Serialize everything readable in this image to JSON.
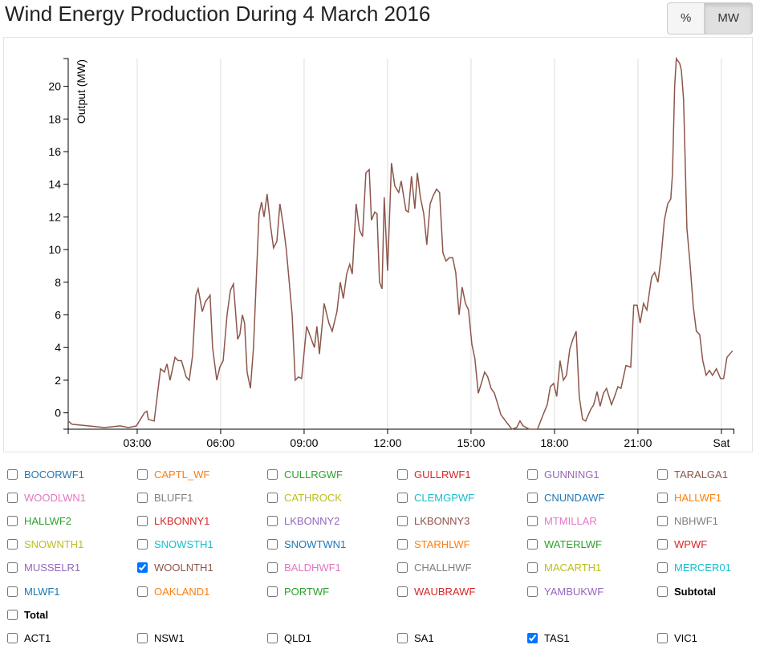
{
  "header": {
    "title": "Wind Energy Production During 4 March 2016",
    "buttons": [
      {
        "label": "%",
        "active": false
      },
      {
        "label": "MW",
        "active": true
      }
    ]
  },
  "chart_data": {
    "type": "line",
    "y_label": "Output (MW)",
    "color": "#8c564b",
    "grid": "x",
    "xlim": [
      0.52,
      24.45
    ],
    "ylim": [
      -1,
      21.7
    ],
    "xticks": [
      {
        "value": 3,
        "label": "03:00"
      },
      {
        "value": 6,
        "label": "06:00"
      },
      {
        "value": 9,
        "label": "09:00"
      },
      {
        "value": 12,
        "label": "12:00"
      },
      {
        "value": 15,
        "label": "15:00"
      },
      {
        "value": 18,
        "label": "18:00"
      },
      {
        "value": 21,
        "label": "21:00"
      },
      {
        "value": 24,
        "label": "Sat"
      }
    ],
    "yticks": [
      0,
      2,
      4,
      6,
      8,
      10,
      12,
      14,
      16,
      18,
      20
    ],
    "x": [
      0.52,
      0.66,
      1.24,
      1.82,
      2.39,
      2.68,
      2.97,
      3.26,
      3.35,
      3.4,
      3.61,
      3.84,
      3.98,
      4.07,
      4.18,
      4.36,
      4.47,
      4.59,
      4.76,
      4.87,
      4.99,
      5.11,
      5.19,
      5.34,
      5.45,
      5.62,
      5.71,
      5.86,
      5.97,
      6.09,
      6.23,
      6.35,
      6.46,
      6.61,
      6.69,
      6.78,
      6.86,
      6.95,
      7.07,
      7.18,
      7.3,
      7.38,
      7.47,
      7.56,
      7.67,
      7.79,
      7.9,
      8.02,
      8.13,
      8.25,
      8.36,
      8.57,
      8.68,
      8.8,
      8.91,
      9.09,
      9.2,
      9.37,
      9.46,
      9.55,
      9.72,
      9.89,
      10.01,
      10.18,
      10.3,
      10.41,
      10.53,
      10.64,
      10.73,
      10.87,
      10.99,
      11.1,
      11.22,
      11.34,
      11.42,
      11.54,
      11.62,
      11.71,
      11.8,
      11.88,
      12.0,
      12.14,
      12.26,
      12.4,
      12.49,
      12.66,
      12.75,
      12.86,
      12.98,
      13.07,
      13.18,
      13.3,
      13.41,
      13.53,
      13.64,
      13.76,
      13.87,
      13.99,
      14.1,
      14.22,
      14.34,
      14.45,
      14.57,
      14.68,
      14.8,
      14.91,
      15.03,
      15.14,
      15.26,
      15.37,
      15.49,
      15.6,
      15.72,
      15.84,
      15.95,
      16.07,
      16.24,
      16.47,
      16.64,
      16.76,
      16.87,
      17.1,
      17.39,
      17.57,
      17.74,
      17.85,
      17.97,
      18.08,
      18.2,
      18.32,
      18.43,
      18.55,
      18.66,
      18.78,
      18.89,
      19.01,
      19.12,
      19.3,
      19.41,
      19.53,
      19.64,
      19.76,
      19.87,
      20.05,
      20.16,
      20.28,
      20.39,
      20.57,
      20.74,
      20.85,
      20.97,
      21.08,
      21.2,
      21.32,
      21.49,
      21.6,
      21.72,
      21.83,
      21.95,
      22.07,
      22.18,
      22.24,
      22.32,
      22.38,
      22.5,
      22.56,
      22.64,
      22.76,
      22.87,
      22.99,
      23.1,
      23.22,
      23.33,
      23.45,
      23.57,
      23.68,
      23.82,
      23.97,
      24.08,
      24.2,
      24.4
    ],
    "values": [
      -0.5,
      -0.7,
      -0.8,
      -0.9,
      -0.8,
      -0.9,
      -0.8,
      0,
      0.1,
      -0.4,
      -0.5,
      2.7,
      2.5,
      3.0,
      2.0,
      3.4,
      3.2,
      3.2,
      2.2,
      2.0,
      3.5,
      7.2,
      7.6,
      6.2,
      6.8,
      7.2,
      4.0,
      2.0,
      2.8,
      3.2,
      6.0,
      7.5,
      7.9,
      4.5,
      4.8,
      6.0,
      5.5,
      2.5,
      1.5,
      4.0,
      9.0,
      12.2,
      12.9,
      12.0,
      13.4,
      11.5,
      10.1,
      10.5,
      12.8,
      11.5,
      10.0,
      6.0,
      2.0,
      2.2,
      2.1,
      5.3,
      4.8,
      4.0,
      5.3,
      3.6,
      6.7,
      5.5,
      5.0,
      6.2,
      8.0,
      7.0,
      8.5,
      9.1,
      8.5,
      12.8,
      11.2,
      10.8,
      14.7,
      14.9,
      11.8,
      12.3,
      12.2,
      8.0,
      7.6,
      13.2,
      8.7,
      15.3,
      13.9,
      13.5,
      14.2,
      12.4,
      12.3,
      14.5,
      12.5,
      14.7,
      13.2,
      12.2,
      10.3,
      12.8,
      13.3,
      13.7,
      13.5,
      9.8,
      9.3,
      9.5,
      9.5,
      8.6,
      6.0,
      7.7,
      6.7,
      6.3,
      4.2,
      3.3,
      1.2,
      1.8,
      2.5,
      2.2,
      1.5,
      1.2,
      0.6,
      -0.1,
      -0.5,
      -1.0,
      -0.9,
      -0.5,
      -0.8,
      -1.0,
      -1.0,
      -0.2,
      0.5,
      1.6,
      1.8,
      1.0,
      3.2,
      2.0,
      2.3,
      3.9,
      4.5,
      5.0,
      1.0,
      -0.4,
      -0.5,
      0.2,
      0.5,
      1.3,
      0.4,
      1.2,
      1.5,
      0.5,
      1.0,
      1.6,
      1.5,
      2.9,
      2.8,
      6.6,
      6.6,
      5.5,
      6.7,
      6.3,
      8.3,
      8.6,
      8.0,
      9.5,
      11.8,
      12.8,
      13.1,
      14.6,
      20.0,
      21.7,
      21.4,
      21.0,
      19.2,
      11.3,
      9.2,
      6.5,
      5.0,
      4.8,
      3.2,
      2.3,
      2.6,
      2.3,
      2.7,
      2.1,
      2.1,
      3.4,
      3.8
    ]
  },
  "legend": {
    "stations": [
      {
        "label": "BOCORWF1",
        "color": "#1f77b4",
        "checked": false
      },
      {
        "label": "CAPTL_WF",
        "color": "#ff7f0e",
        "checked": false
      },
      {
        "label": "CULLRGWF",
        "color": "#2ca02c",
        "checked": false
      },
      {
        "label": "GULLRWF1",
        "color": "#d62728",
        "checked": false
      },
      {
        "label": "GUNNING1",
        "color": "#9467bd",
        "checked": false
      },
      {
        "label": "TARALGA1",
        "color": "#8c564b",
        "checked": false
      },
      {
        "label": "WOODLWN1",
        "color": "#e377c2",
        "checked": false
      },
      {
        "label": "BLUFF1",
        "color": "#7f7f7f",
        "checked": false
      },
      {
        "label": "CATHROCK",
        "color": "#bcbd22",
        "checked": false
      },
      {
        "label": "CLEMGPWF",
        "color": "#17becf",
        "checked": false
      },
      {
        "label": "CNUNDAWF",
        "color": "#1f77b4",
        "checked": false
      },
      {
        "label": "HALLWF1",
        "color": "#ff7f0e",
        "checked": false
      },
      {
        "label": "HALLWF2",
        "color": "#2ca02c",
        "checked": false
      },
      {
        "label": "LKBONNY1",
        "color": "#d62728",
        "checked": false
      },
      {
        "label": "LKBONNY2",
        "color": "#9467bd",
        "checked": false
      },
      {
        "label": "LKBONNY3",
        "color": "#8c564b",
        "checked": false
      },
      {
        "label": "MTMILLAR",
        "color": "#e377c2",
        "checked": false
      },
      {
        "label": "NBHWF1",
        "color": "#7f7f7f",
        "checked": false
      },
      {
        "label": "SNOWNTH1",
        "color": "#bcbd22",
        "checked": false
      },
      {
        "label": "SNOWSTH1",
        "color": "#17becf",
        "checked": false
      },
      {
        "label": "SNOWTWN1",
        "color": "#1f77b4",
        "checked": false
      },
      {
        "label": "STARHLWF",
        "color": "#ff7f0e",
        "checked": false
      },
      {
        "label": "WATERLWF",
        "color": "#2ca02c",
        "checked": false
      },
      {
        "label": "WPWF",
        "color": "#d62728",
        "checked": false
      },
      {
        "label": "MUSSELR1",
        "color": "#9467bd",
        "checked": false
      },
      {
        "label": "WOOLNTH1",
        "color": "#8c564b",
        "checked": true
      },
      {
        "label": "BALDHWF1",
        "color": "#e377c2",
        "checked": false
      },
      {
        "label": "CHALLHWF",
        "color": "#7f7f7f",
        "checked": false
      },
      {
        "label": "MACARTH1",
        "color": "#bcbd22",
        "checked": false
      },
      {
        "label": "MERCER01",
        "color": "#17becf",
        "checked": false
      },
      {
        "label": "MLWF1",
        "color": "#1f77b4",
        "checked": false
      },
      {
        "label": "OAKLAND1",
        "color": "#ff7f0e",
        "checked": false
      },
      {
        "label": "PORTWF",
        "color": "#2ca02c",
        "checked": false
      },
      {
        "label": "WAUBRAWF",
        "color": "#d62728",
        "checked": false
      },
      {
        "label": "YAMBUKWF",
        "color": "#9467bd",
        "checked": false
      },
      {
        "label": "Subtotal",
        "color": "#000000",
        "checked": false,
        "bold": true
      },
      {
        "label": "Total",
        "color": "#000000",
        "checked": false,
        "bold": true
      }
    ],
    "regions": [
      {
        "label": "ACT1",
        "color": "#000000",
        "checked": false
      },
      {
        "label": "NSW1",
        "color": "#000000",
        "checked": false
      },
      {
        "label": "QLD1",
        "color": "#000000",
        "checked": false
      },
      {
        "label": "SA1",
        "color": "#000000",
        "checked": false
      },
      {
        "label": "TAS1",
        "color": "#000000",
        "checked": true
      },
      {
        "label": "VIC1",
        "color": "#000000",
        "checked": false
      }
    ]
  }
}
